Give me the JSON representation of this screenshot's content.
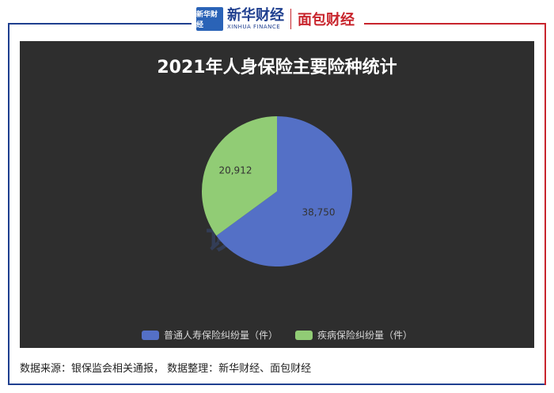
{
  "header": {
    "logo_badge": "新华财经",
    "xinhua_cn": "新华财经",
    "xinhua_en": "XINHUA FINANCE",
    "partner": "面包财经"
  },
  "watermark": "读财",
  "chart_data": {
    "type": "pie",
    "title": "2021年人身保险主要险种统计",
    "categories": [
      "普通人寿保险纠纷量（件）",
      "疾病保险纠纷量（件）"
    ],
    "values": [
      38750,
      20912
    ],
    "data_labels": [
      "38,750",
      "20,912"
    ],
    "colors": [
      "#5470c6",
      "#91cc75"
    ],
    "legend_position": "bottom"
  },
  "footer": {
    "source": "数据来源：银保监会相关通报， 数据整理：新华财经、面包财经"
  },
  "theme": {
    "panel_bg": "#2e2e2e",
    "frame_blue": "#1f3f8f",
    "frame_red": "#c8242c"
  }
}
